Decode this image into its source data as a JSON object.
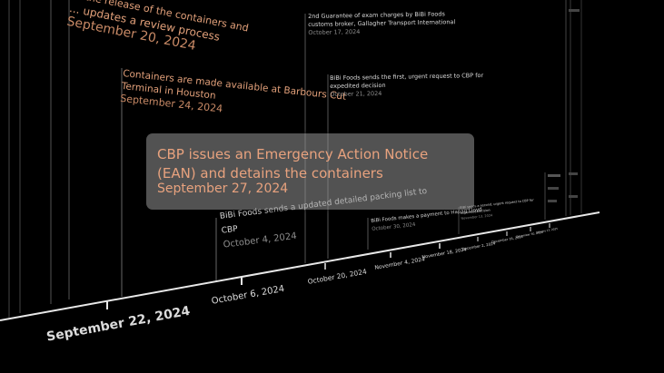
{
  "events": {
    "e1": {
      "title_line1": "... updates a review process",
      "title_prefix": "...the release of the containers and",
      "date": "September 20, 2024"
    },
    "e2": {
      "title_line1": "Containers are made available at Barbours Cut",
      "title_line2": "Terminal in Houston",
      "date": "September 24, 2024"
    },
    "e3": {
      "title_line1": "BiBi Foods sends a updated detailed packing list to",
      "title_line2": "CBP",
      "date": "October 4, 2024"
    },
    "e4": {
      "title_line1": "2nd Guarantee of exam charges by BiBi Foods",
      "title_line2": "customs broker, Gallagher Transport International",
      "date": "October 17, 2024"
    },
    "e5": {
      "title_line1": "BiBi Foods sends the first, urgent request to CBP for",
      "title_line2": "expedited decision",
      "date": "October 21, 2024"
    },
    "e6": {
      "title_line1": "BiBi Foods makes a payment to Hapag Lloyd",
      "date": "October 30, 2024"
    },
    "e7": {
      "title_line1": "BiBi sends a second, urgent request to CBP for",
      "title_line2": "expedited decision",
      "date": "November 13, 2024"
    }
  },
  "tooltip": {
    "title": "CBP issues an Emergency Action Notice (EAN) and detains the containers",
    "date": "September 27, 2024"
  },
  "axis": {
    "labels": [
      "September 22, 2024",
      "October 6, 2024",
      "October 20, 2024",
      "November 4, 2024",
      "November 18, 2024",
      "December 2, 2024",
      "December 16, 2024",
      "December 30, 2024",
      "January 13, 2025"
    ]
  },
  "colors": {
    "background": "#000000",
    "event_title_highlight": "#e2a07a",
    "tooltip_bg": "#969696"
  }
}
